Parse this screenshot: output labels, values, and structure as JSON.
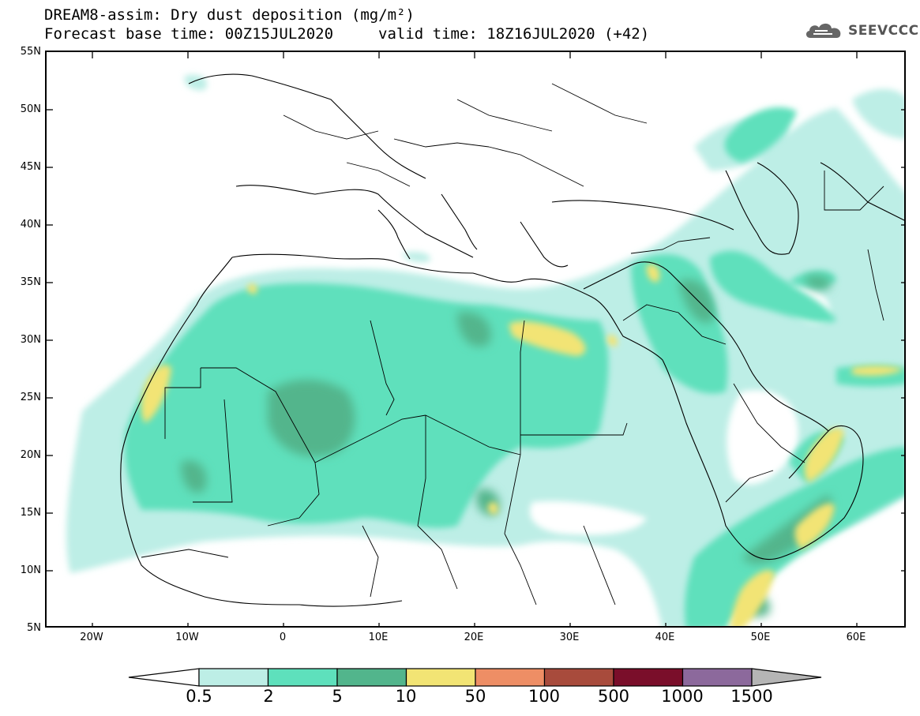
{
  "header": {
    "title_line": "DREAM8-assim: Dry dust deposition (mg/m²)",
    "base_time": "Forecast base time: 00Z15JUL2020",
    "valid_time": "valid time: 18Z16JUL2020 (+42)"
  },
  "logo": {
    "text": "SEEVCCC",
    "icon": "cloud-icon"
  },
  "map": {
    "lat_labels": [
      "55N",
      "50N",
      "45N",
      "40N",
      "35N",
      "30N",
      "25N",
      "20N",
      "15N",
      "10N",
      "5N"
    ],
    "lon_labels": [
      "20W",
      "10W",
      "0",
      "10E",
      "20E",
      "30E",
      "40E",
      "50E",
      "60E"
    ]
  },
  "colorbar": {
    "labels": [
      "0.5",
      "2",
      "5",
      "10",
      "50",
      "100",
      "500",
      "1000",
      "1500"
    ],
    "colors": [
      "#bdeee6",
      "#5ee0bc",
      "#52b58c",
      "#f2e474",
      "#ee8e65",
      "#a84b3c",
      "#7a0e2a",
      "#8c699c",
      "#b5b5b5"
    ]
  }
}
